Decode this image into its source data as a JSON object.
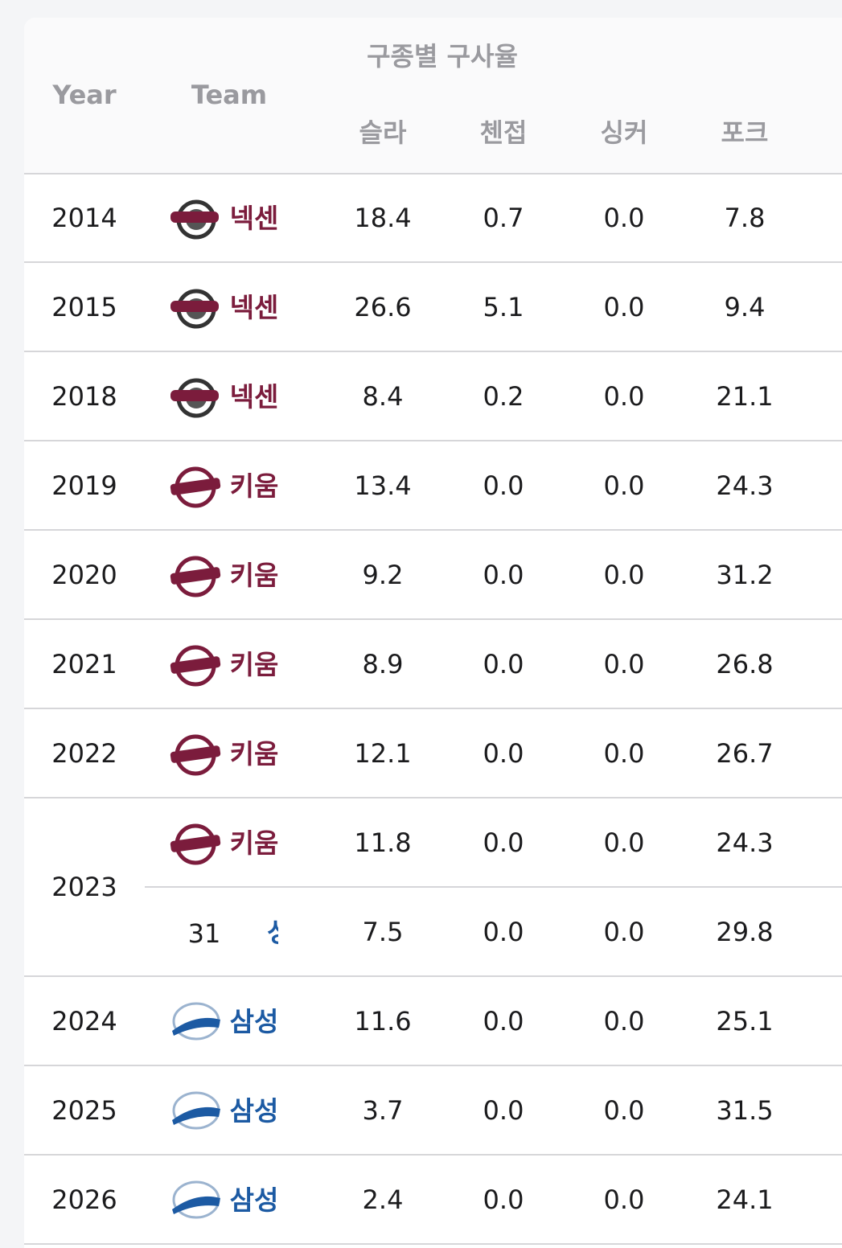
{
  "table": {
    "header": {
      "year": "Year",
      "team": "Team",
      "group": "구종별 구사율",
      "columns": [
        "슬라",
        "첸접",
        "싱커",
        "포크"
      ]
    },
    "rows": [
      {
        "year": "2014",
        "entries": [
          {
            "team": "넥센",
            "color": "#7b1c3c",
            "logo": "heroes",
            "values": [
              "18.4",
              "0.7",
              "0.0",
              "7.8"
            ]
          }
        ]
      },
      {
        "year": "2015",
        "entries": [
          {
            "team": "넥센",
            "color": "#7b1c3c",
            "logo": "heroes",
            "values": [
              "26.6",
              "5.1",
              "0.0",
              "9.4"
            ]
          }
        ]
      },
      {
        "year": "2018",
        "entries": [
          {
            "team": "넥센",
            "color": "#7b1c3c",
            "logo": "heroes",
            "values": [
              "8.4",
              "0.2",
              "0.0",
              "21.1"
            ]
          }
        ]
      },
      {
        "year": "2019",
        "entries": [
          {
            "team": "키움",
            "color": "#7b1c3c",
            "logo": "kiwoom",
            "values": [
              "13.4",
              "0.0",
              "0.0",
              "24.3"
            ]
          }
        ]
      },
      {
        "year": "2020",
        "entries": [
          {
            "team": "키움",
            "color": "#7b1c3c",
            "logo": "kiwoom",
            "values": [
              "9.2",
              "0.0",
              "0.0",
              "31.2"
            ]
          }
        ]
      },
      {
        "year": "2021",
        "entries": [
          {
            "team": "키움",
            "color": "#7b1c3c",
            "logo": "kiwoom",
            "values": [
              "8.9",
              "0.0",
              "0.0",
              "26.8"
            ]
          }
        ]
      },
      {
        "year": "2022",
        "entries": [
          {
            "team": "키움",
            "color": "#7b1c3c",
            "logo": "kiwoom",
            "values": [
              "12.1",
              "0.0",
              "0.0",
              "26.7"
            ]
          }
        ]
      },
      {
        "year": "2023",
        "entries": [
          {
            "team": "키움",
            "color": "#7b1c3c",
            "logo": "kiwoom",
            "values": [
              "11.8",
              "0.0",
              "0.0",
              "24.3"
            ]
          },
          {
            "prefix": "31",
            "team": "성",
            "color": "#1c5aa3",
            "values": [
              "7.5",
              "0.0",
              "0.0",
              "29.8"
            ]
          }
        ]
      },
      {
        "year": "2024",
        "entries": [
          {
            "team": "삼성",
            "color": "#1c5aa3",
            "logo": "lions",
            "values": [
              "11.6",
              "0.0",
              "0.0",
              "25.1"
            ]
          }
        ]
      },
      {
        "year": "2025",
        "entries": [
          {
            "team": "삼성",
            "color": "#1c5aa3",
            "logo": "lions",
            "values": [
              "3.7",
              "0.0",
              "0.0",
              "31.5"
            ]
          }
        ]
      },
      {
        "year": "2026",
        "entries": [
          {
            "team": "삼성",
            "color": "#1c5aa3",
            "logo": "lions",
            "values": [
              "2.4",
              "0.0",
              "0.0",
              "24.1"
            ]
          }
        ]
      }
    ]
  }
}
